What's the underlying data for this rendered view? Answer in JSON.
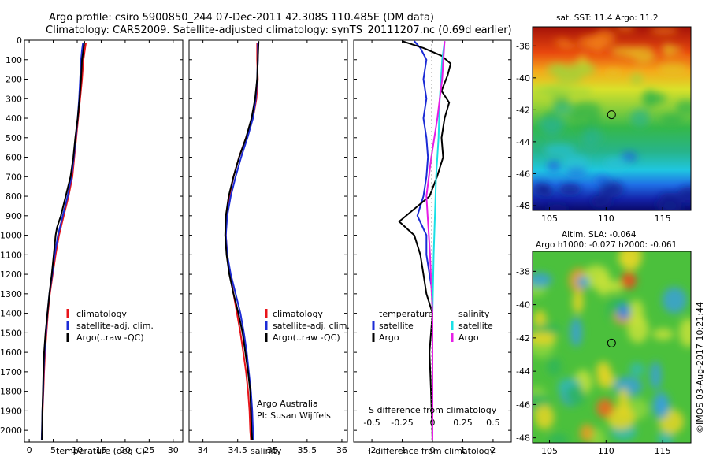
{
  "header": {
    "line1": "Argo profile: csiro 5900850_244 07-Dec-2011 42.308S 110.485E (DM data)",
    "line2": "Climatology: CARS2009. Satellite-adjusted climatology: synTS_20111207.nc (0.69d earlier)"
  },
  "colors": {
    "climatology": "#e8141a",
    "satellite_adj": "#1b2bd6",
    "argo": "#000000",
    "salinity_satellite": "#19e0e6",
    "salinity_argo": "#e61ee6"
  },
  "chart_data": [
    {
      "type": "line",
      "name": "temperature",
      "xlabel": "temperature (deg C)",
      "xlim": [
        -1,
        32
      ],
      "xticks": [
        "0",
        "5",
        "10",
        "15",
        "20",
        "25",
        "30"
      ],
      "ylim": [
        2060,
        0
      ],
      "yticks": [
        "0",
        "100",
        "200",
        "300",
        "400",
        "500",
        "600",
        "700",
        "800",
        "900",
        "1000",
        "1100",
        "1200",
        "1300",
        "1400",
        "1500",
        "1600",
        "1700",
        "1800",
        "1900",
        "2000"
      ],
      "legend": [
        "climatology",
        "satellite-adj. clim.",
        "Argo(..raw -QC)"
      ],
      "legend_position": "lower-right",
      "series": [
        {
          "name": "climatology",
          "color": "#e8141a",
          "points": [
            [
              11.8,
              15
            ],
            [
              11.6,
              50
            ],
            [
              11.3,
              100
            ],
            [
              11.0,
              200
            ],
            [
              10.6,
              300
            ],
            [
              10.2,
              400
            ],
            [
              9.8,
              500
            ],
            [
              9.4,
              600
            ],
            [
              9.0,
              700
            ],
            [
              8.2,
              800
            ],
            [
              7.2,
              900
            ],
            [
              6.2,
              1000
            ],
            [
              5.5,
              1100
            ],
            [
              4.9,
              1200
            ],
            [
              4.3,
              1300
            ],
            [
              3.9,
              1400
            ],
            [
              3.6,
              1500
            ],
            [
              3.3,
              1600
            ],
            [
              3.1,
              1700
            ],
            [
              2.95,
              1800
            ],
            [
              2.8,
              1900
            ],
            [
              2.7,
              2000
            ],
            [
              2.65,
              2050
            ]
          ]
        },
        {
          "name": "satellite-adj. clim.",
          "color": "#1b2bd6",
          "points": [
            [
              11.2,
              15
            ],
            [
              11.0,
              50
            ],
            [
              10.8,
              100
            ],
            [
              10.6,
              200
            ],
            [
              10.4,
              300
            ],
            [
              10.1,
              400
            ],
            [
              9.7,
              500
            ],
            [
              9.3,
              600
            ],
            [
              8.8,
              700
            ],
            [
              8.0,
              800
            ],
            [
              7.0,
              900
            ],
            [
              6.0,
              1000
            ],
            [
              5.3,
              1100
            ],
            [
              4.8,
              1200
            ],
            [
              4.2,
              1300
            ],
            [
              3.8,
              1400
            ],
            [
              3.5,
              1500
            ],
            [
              3.2,
              1600
            ],
            [
              3.0,
              1700
            ],
            [
              2.9,
              1800
            ],
            [
              2.75,
              1900
            ],
            [
              2.65,
              2000
            ],
            [
              2.6,
              2050
            ]
          ]
        },
        {
          "name": "Argo(..raw -QC)",
          "color": "#000000",
          "points": [
            [
              11.5,
              5
            ],
            [
              11.3,
              50
            ],
            [
              11.0,
              100
            ],
            [
              10.8,
              200
            ],
            [
              10.5,
              300
            ],
            [
              10.1,
              400
            ],
            [
              9.6,
              500
            ],
            [
              9.2,
              600
            ],
            [
              8.6,
              700
            ],
            [
              7.6,
              800
            ],
            [
              6.6,
              900
            ],
            [
              5.8,
              960
            ],
            [
              5.5,
              1000
            ],
            [
              5.1,
              1100
            ],
            [
              4.7,
              1200
            ],
            [
              4.2,
              1300
            ],
            [
              3.8,
              1400
            ],
            [
              3.4,
              1500
            ],
            [
              3.1,
              1600
            ],
            [
              2.95,
              1700
            ],
            [
              2.85,
              1800
            ],
            [
              2.75,
              1900
            ],
            [
              2.7,
              2000
            ],
            [
              2.65,
              2050
            ]
          ]
        }
      ]
    },
    {
      "type": "line",
      "name": "salinity",
      "xlabel": "salinity",
      "xlim": [
        33.8,
        36.08
      ],
      "xticks": [
        "34",
        "34.5",
        "35",
        "35.5",
        "36"
      ],
      "ylim": [
        2060,
        0
      ],
      "legend": [
        "climatology",
        "satellite-adj. clim.",
        "Argo(..raw -QC)"
      ],
      "legend_position": "lower-right",
      "annotation": [
        "Argo Australia",
        "PI: Susan Wijffels"
      ],
      "series": [
        {
          "name": "climatology",
          "color": "#e8141a",
          "points": [
            [
              34.78,
              15
            ],
            [
              34.78,
              100
            ],
            [
              34.79,
              200
            ],
            [
              34.77,
              300
            ],
            [
              34.72,
              400
            ],
            [
              34.62,
              500
            ],
            [
              34.52,
              600
            ],
            [
              34.44,
              700
            ],
            [
              34.38,
              800
            ],
            [
              34.34,
              900
            ],
            [
              34.33,
              1000
            ],
            [
              34.35,
              1100
            ],
            [
              34.39,
              1200
            ],
            [
              34.44,
              1300
            ],
            [
              34.49,
              1400
            ],
            [
              34.54,
              1500
            ],
            [
              34.58,
              1600
            ],
            [
              34.62,
              1700
            ],
            [
              34.65,
              1800
            ],
            [
              34.67,
              1900
            ],
            [
              34.68,
              2000
            ],
            [
              34.69,
              2050
            ]
          ]
        },
        {
          "name": "satellite-adj. clim.",
          "color": "#1b2bd6",
          "points": [
            [
              34.79,
              15
            ],
            [
              34.79,
              100
            ],
            [
              34.78,
              200
            ],
            [
              34.76,
              300
            ],
            [
              34.72,
              400
            ],
            [
              34.64,
              500
            ],
            [
              34.55,
              600
            ],
            [
              34.47,
              700
            ],
            [
              34.4,
              800
            ],
            [
              34.35,
              900
            ],
            [
              34.33,
              1000
            ],
            [
              34.35,
              1100
            ],
            [
              34.4,
              1200
            ],
            [
              34.47,
              1300
            ],
            [
              34.54,
              1400
            ],
            [
              34.59,
              1500
            ],
            [
              34.63,
              1600
            ],
            [
              34.66,
              1700
            ],
            [
              34.69,
              1800
            ],
            [
              34.71,
              1900
            ],
            [
              34.72,
              2000
            ],
            [
              34.72,
              2050
            ]
          ]
        },
        {
          "name": "Argo(..raw -QC)",
          "color": "#000000",
          "points": [
            [
              34.8,
              5
            ],
            [
              34.79,
              100
            ],
            [
              34.78,
              200
            ],
            [
              34.75,
              300
            ],
            [
              34.7,
              400
            ],
            [
              34.62,
              500
            ],
            [
              34.52,
              600
            ],
            [
              34.44,
              700
            ],
            [
              34.37,
              800
            ],
            [
              34.33,
              900
            ],
            [
              34.32,
              1000
            ],
            [
              34.34,
              1100
            ],
            [
              34.38,
              1200
            ],
            [
              34.44,
              1300
            ],
            [
              34.51,
              1400
            ],
            [
              34.57,
              1500
            ],
            [
              34.61,
              1600
            ],
            [
              34.65,
              1700
            ],
            [
              34.68,
              1800
            ],
            [
              34.69,
              1900
            ],
            [
              34.7,
              2000
            ],
            [
              34.71,
              2050
            ]
          ]
        }
      ]
    },
    {
      "type": "line",
      "name": "difference",
      "xlabel": "T difference from climatology",
      "xlabel2": "S difference from climatology",
      "xlim": [
        -2.6,
        2.6
      ],
      "xticks": [
        "-2",
        "-1",
        "0",
        "1",
        "2"
      ],
      "xticks2": [
        "-0.5",
        "-0.25",
        "0",
        "0.25",
        "0.5"
      ],
      "ylim": [
        2060,
        0
      ],
      "legend": {
        "temperature_title": "temperature",
        "salinity_title": "salinity",
        "items": [
          "satellite",
          "Argo",
          "satellite",
          "Argo"
        ]
      },
      "legend_position": "lower-right",
      "series": [
        {
          "name": "satellite",
          "color": "#1b2bd6",
          "points": [
            [
              -0.6,
              5
            ],
            [
              -0.4,
              40
            ],
            [
              -0.2,
              100
            ],
            [
              -0.3,
              200
            ],
            [
              -0.2,
              300
            ],
            [
              -0.3,
              400
            ],
            [
              -0.2,
              500
            ],
            [
              -0.15,
              600
            ],
            [
              -0.2,
              700
            ],
            [
              -0.3,
              800
            ],
            [
              -0.5,
              900
            ],
            [
              -0.2,
              1000
            ],
            [
              -0.2,
              1100
            ],
            [
              -0.1,
              1200
            ],
            [
              0.0,
              1300
            ],
            [
              0.0,
              1400
            ],
            [
              0.0,
              1600
            ],
            [
              0.0,
              2050
            ]
          ]
        },
        {
          "name": "Argo",
          "color": "#000000",
          "points": [
            [
              -1.0,
              5
            ],
            [
              -0.3,
              40
            ],
            [
              0.3,
              80
            ],
            [
              0.6,
              120
            ],
            [
              0.5,
              180
            ],
            [
              0.3,
              260
            ],
            [
              0.55,
              320
            ],
            [
              0.4,
              400
            ],
            [
              0.3,
              500
            ],
            [
              0.35,
              600
            ],
            [
              0.15,
              700
            ],
            [
              -0.1,
              800
            ],
            [
              -1.1,
              930
            ],
            [
              -0.6,
              1000
            ],
            [
              -0.4,
              1100
            ],
            [
              -0.3,
              1200
            ],
            [
              -0.2,
              1300
            ],
            [
              0.0,
              1400
            ],
            [
              -0.1,
              1600
            ],
            [
              -0.05,
              1800
            ],
            [
              0.0,
              2050
            ]
          ]
        },
        {
          "name": "satellite",
          "color": "#19e0e6",
          "points": [
            [
              0.1,
              5
            ],
            [
              0.08,
              100
            ],
            [
              0.07,
              200
            ],
            [
              0.06,
              300
            ],
            [
              0.05,
              500
            ],
            [
              0.03,
              700
            ],
            [
              0.02,
              900
            ],
            [
              0.01,
              1100
            ],
            [
              0.0,
              1400
            ],
            [
              0.0,
              2050
            ]
          ]
        },
        {
          "name": "Argo",
          "color": "#e61ee6",
          "points": [
            [
              0.1,
              5
            ],
            [
              0.09,
              100
            ],
            [
              0.08,
              200
            ],
            [
              0.04,
              400
            ],
            [
              -0.01,
              600
            ],
            [
              -0.05,
              800
            ],
            [
              -0.04,
              900
            ],
            [
              -0.02,
              1100
            ],
            [
              0.0,
              1400
            ],
            [
              0.0,
              2050
            ]
          ]
        }
      ]
    },
    {
      "type": "heatmap",
      "name": "sst_map",
      "title": "sat. SST: 11.4 Argo: 11.2",
      "xticks": [
        "105",
        "110",
        "115"
      ],
      "yticks": [
        "-38",
        "-40",
        "-42",
        "-44",
        "-46",
        "-48"
      ],
      "marker": {
        "lon": 110.485,
        "lat": -42.308
      }
    },
    {
      "type": "heatmap",
      "name": "sla_map",
      "title": "Altim. SLA: -0.064",
      "subtitle": "Argo h1000: -0.027 h2000: -0.061",
      "xticks": [
        "105",
        "110",
        "115"
      ],
      "yticks": [
        "-38",
        "-40",
        "-42",
        "-44",
        "-46",
        "-48"
      ],
      "marker": {
        "lon": 110.485,
        "lat": -42.308
      }
    }
  ],
  "credit": "©IMOS 03-Aug-2017 10:21:44"
}
